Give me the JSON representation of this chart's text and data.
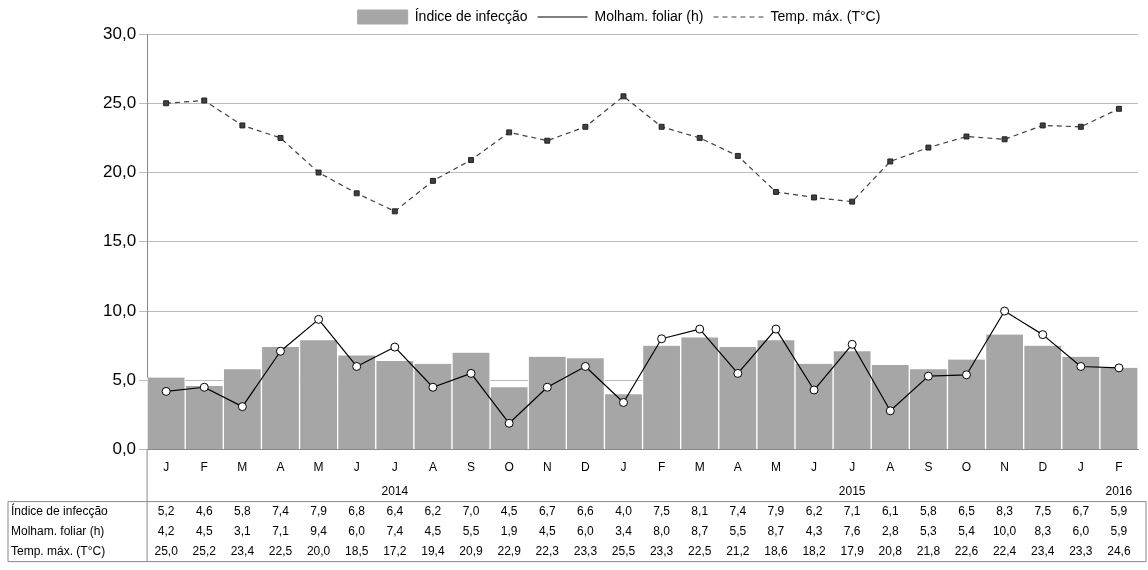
{
  "chart_data": {
    "type": "bar",
    "categories": [
      "J",
      "F",
      "M",
      "A",
      "M",
      "J",
      "J",
      "A",
      "S",
      "O",
      "N",
      "D",
      "J",
      "F",
      "M",
      "A",
      "M",
      "J",
      "J",
      "A",
      "S",
      "O",
      "N",
      "D",
      "J",
      "F"
    ],
    "series": [
      {
        "name": "Índice de infecção",
        "color": "#a6a6a6",
        "values": [
          5.2,
          4.6,
          5.8,
          7.4,
          7.9,
          6.8,
          6.4,
          6.2,
          7.0,
          4.5,
          6.7,
          6.6,
          4.0,
          7.5,
          8.1,
          7.4,
          7.9,
          6.2,
          7.1,
          6.1,
          5.8,
          6.5,
          8.3,
          7.5,
          6.7,
          5.9
        ],
        "value_labels": [
          "5,2",
          "4,6",
          "5,8",
          "7,4",
          "7,9",
          "6,8",
          "6,4",
          "6,2",
          "7,0",
          "4,5",
          "6,7",
          "6,6",
          "4,0",
          "7,5",
          "8,1",
          "7,4",
          "7,9",
          "6,2",
          "7,1",
          "6,1",
          "5,8",
          "6,5",
          "8,3",
          "7,5",
          "6,7",
          "5,9"
        ]
      },
      {
        "name": "Molham. foliar (h)",
        "type": "line",
        "color": "#000000",
        "marker": "circle",
        "line_style": "solid",
        "values": [
          4.2,
          4.5,
          3.1,
          7.1,
          9.4,
          6.0,
          7.4,
          4.5,
          5.5,
          1.9,
          4.5,
          6.0,
          3.4,
          8.0,
          8.7,
          5.5,
          8.7,
          4.3,
          7.6,
          2.8,
          5.3,
          5.4,
          10.0,
          8.3,
          6.0,
          5.9
        ],
        "value_labels": [
          "4,2",
          "4,5",
          "3,1",
          "7,1",
          "9,4",
          "6,0",
          "7,4",
          "4,5",
          "5,5",
          "1,9",
          "4,5",
          "6,0",
          "3,4",
          "8,0",
          "8,7",
          "5,5",
          "8,7",
          "4,3",
          "7,6",
          "2,8",
          "5,3",
          "5,4",
          "10,0",
          "8,3",
          "6,0",
          "5,9"
        ]
      },
      {
        "name": "Temp. máx. (T°C)",
        "type": "line",
        "color": "#404040",
        "marker": "square",
        "line_style": "dashed",
        "values": [
          25.0,
          25.2,
          23.4,
          22.5,
          20.0,
          18.5,
          17.2,
          19.4,
          20.9,
          22.9,
          22.3,
          23.3,
          25.5,
          23.3,
          22.5,
          21.2,
          18.6,
          18.2,
          17.9,
          20.8,
          21.8,
          22.6,
          22.4,
          23.4,
          23.3,
          24.6
        ],
        "value_labels": [
          "25,0",
          "25,2",
          "23,4",
          "22,5",
          "20,0",
          "18,5",
          "17,2",
          "19,4",
          "20,9",
          "22,9",
          "22,3",
          "23,3",
          "25,5",
          "23,3",
          "22,5",
          "21,2",
          "18,6",
          "18,2",
          "17,9",
          "20,8",
          "21,8",
          "22,6",
          "22,4",
          "23,4",
          "23,3",
          "24,6"
        ]
      }
    ],
    "ylim": [
      0,
      30
    ],
    "yticks": [
      {
        "value": 0,
        "label": "0,0"
      },
      {
        "value": 5,
        "label": "5,0"
      },
      {
        "value": 10,
        "label": "10,0"
      },
      {
        "value": 15,
        "label": "15,0"
      },
      {
        "value": 20,
        "label": "20,0"
      },
      {
        "value": 25,
        "label": "25,0"
      },
      {
        "value": 30,
        "label": "30,0"
      }
    ],
    "annotations": [
      "2014",
      "2015",
      "2016"
    ],
    "grid": "y",
    "legend": "top"
  }
}
